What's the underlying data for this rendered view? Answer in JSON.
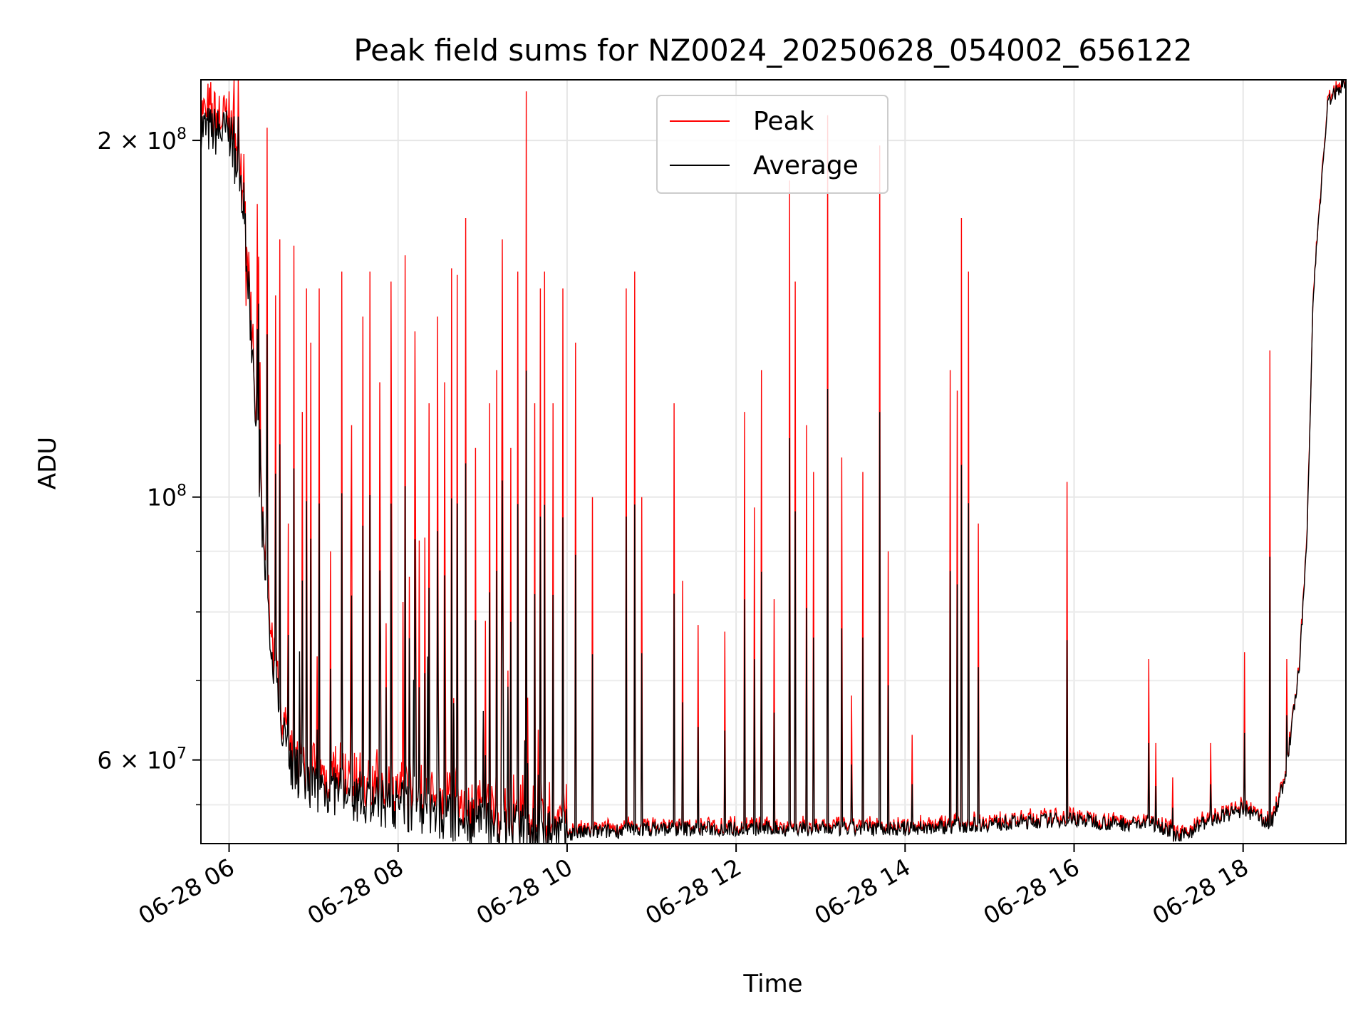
{
  "chart_data": {
    "type": "line",
    "title": "Peak field sums for NZ0024_20250628_054002_656122",
    "xlabel": "Time",
    "ylabel": "ADU",
    "yscale": "log",
    "xlim": [
      "2025-06-28 05:40",
      "2025-06-28 19:13"
    ],
    "ylim": [
      51000000,
      225000000
    ],
    "grid": true,
    "legend": "upper-center",
    "x_ticks": [
      {
        "value": "2025-06-28 06:00",
        "label": "06-28 06"
      },
      {
        "value": "2025-06-28 08:00",
        "label": "06-28 08"
      },
      {
        "value": "2025-06-28 10:00",
        "label": "06-28 10"
      },
      {
        "value": "2025-06-28 12:00",
        "label": "06-28 12"
      },
      {
        "value": "2025-06-28 14:00",
        "label": "06-28 14"
      },
      {
        "value": "2025-06-28 16:00",
        "label": "06-28 16"
      },
      {
        "value": "2025-06-28 18:00",
        "label": "06-28 18"
      }
    ],
    "y_ticks": [
      {
        "value": 200000000,
        "label_base": "2 × 10",
        "label_exp": "8"
      },
      {
        "value": 100000000,
        "label_base": "10",
        "label_exp": "8"
      },
      {
        "value": 60000000,
        "label_base": "6 × 10",
        "label_exp": "7"
      }
    ],
    "series": [
      {
        "name": "Peak",
        "color": "#ff0000",
        "baseline_x": [
          "2025-06-28 05:40",
          "2025-06-28 05:55",
          "2025-06-28 06:00",
          "2025-06-28 06:10",
          "2025-06-28 06:20",
          "2025-06-28 06:30",
          "2025-06-28 06:45",
          "2025-06-28 07:00",
          "2025-06-28 07:30",
          "2025-06-28 08:00",
          "2025-06-28 08:30",
          "2025-06-28 09:00",
          "2025-06-28 09:30",
          "2025-06-28 10:00",
          "2025-06-28 11:00",
          "2025-06-28 12:00",
          "2025-06-28 13:00",
          "2025-06-28 14:00",
          "2025-06-28 15:00",
          "2025-06-28 16:00",
          "2025-06-28 16:30",
          "2025-06-28 17:00",
          "2025-06-28 17:15",
          "2025-06-28 17:30",
          "2025-06-28 18:00",
          "2025-06-28 18:20",
          "2025-06-28 18:30",
          "2025-06-28 18:40",
          "2025-06-28 18:45",
          "2025-06-28 18:50",
          "2025-06-28 19:00",
          "2025-06-28 19:13"
        ],
        "baseline_y": [
          205000000,
          203000000,
          203000000,
          180000000,
          110000000,
          72000000,
          59000000,
          57000000,
          56000000,
          55000000,
          54000000,
          53000000,
          52500000,
          52000000,
          52500000,
          52500000,
          52500000,
          52500000,
          53000000,
          53500000,
          53000000,
          53000000,
          51500000,
          53000000,
          54500000,
          53000000,
          58000000,
          72000000,
          90000000,
          150000000,
          215000000,
          225000000
        ],
        "spikes": [
          {
            "x": "2025-06-28 06:02",
            "y": 206000000
          },
          {
            "x": "2025-06-28 06:12",
            "y": 145000000
          },
          {
            "x": "2025-06-28 06:17",
            "y": 140000000
          },
          {
            "x": "2025-06-28 06:22",
            "y": 130000000
          },
          {
            "x": "2025-06-28 06:27",
            "y": 205000000
          },
          {
            "x": "2025-06-28 06:33",
            "y": 148000000
          },
          {
            "x": "2025-06-28 06:36",
            "y": 165000000
          },
          {
            "x": "2025-06-28 06:42",
            "y": 95000000
          },
          {
            "x": "2025-06-28 06:46",
            "y": 163000000
          },
          {
            "x": "2025-06-28 06:52",
            "y": 118000000
          },
          {
            "x": "2025-06-28 06:55",
            "y": 150000000
          },
          {
            "x": "2025-06-28 06:58",
            "y": 135000000
          },
          {
            "x": "2025-06-28 07:04",
            "y": 150000000
          },
          {
            "x": "2025-06-28 07:12",
            "y": 90000000
          },
          {
            "x": "2025-06-28 07:20",
            "y": 155000000
          },
          {
            "x": "2025-06-28 07:27",
            "y": 115000000
          },
          {
            "x": "2025-06-28 07:35",
            "y": 142000000
          },
          {
            "x": "2025-06-28 07:40",
            "y": 155000000
          },
          {
            "x": "2025-06-28 07:47",
            "y": 125000000
          },
          {
            "x": "2025-06-28 07:55",
            "y": 152000000
          },
          {
            "x": "2025-06-28 08:05",
            "y": 160000000
          },
          {
            "x": "2025-06-28 08:12",
            "y": 138000000
          },
          {
            "x": "2025-06-28 08:22",
            "y": 120000000
          },
          {
            "x": "2025-06-28 08:28",
            "y": 142000000
          },
          {
            "x": "2025-06-28 08:33",
            "y": 125000000
          },
          {
            "x": "2025-06-28 08:38",
            "y": 156000000
          },
          {
            "x": "2025-06-28 08:42",
            "y": 154000000
          },
          {
            "x": "2025-06-28 08:48",
            "y": 172000000
          },
          {
            "x": "2025-06-28 08:55",
            "y": 110000000
          },
          {
            "x": "2025-06-28 09:05",
            "y": 120000000
          },
          {
            "x": "2025-06-28 09:10",
            "y": 128000000
          },
          {
            "x": "2025-06-28 09:14",
            "y": 165000000
          },
          {
            "x": "2025-06-28 09:20",
            "y": 110000000
          },
          {
            "x": "2025-06-28 09:25",
            "y": 155000000
          },
          {
            "x": "2025-06-28 09:31",
            "y": 220000000
          },
          {
            "x": "2025-06-28 09:37",
            "y": 120000000
          },
          {
            "x": "2025-06-28 09:41",
            "y": 150000000
          },
          {
            "x": "2025-06-28 09:44",
            "y": 155000000
          },
          {
            "x": "2025-06-28 09:50",
            "y": 120000000
          },
          {
            "x": "2025-06-28 09:57",
            "y": 150000000
          },
          {
            "x": "2025-06-28 10:06",
            "y": 135000000
          },
          {
            "x": "2025-06-28 10:18",
            "y": 100000000
          },
          {
            "x": "2025-06-28 10:42",
            "y": 150000000
          },
          {
            "x": "2025-06-28 10:48",
            "y": 155000000
          },
          {
            "x": "2025-06-28 10:53",
            "y": 100000000
          },
          {
            "x": "2025-06-28 11:16",
            "y": 120000000
          },
          {
            "x": "2025-06-28 11:22",
            "y": 85000000
          },
          {
            "x": "2025-06-28 11:33",
            "y": 78000000
          },
          {
            "x": "2025-06-28 11:52",
            "y": 77000000
          },
          {
            "x": "2025-06-28 12:06",
            "y": 118000000
          },
          {
            "x": "2025-06-28 12:13",
            "y": 98000000
          },
          {
            "x": "2025-06-28 12:18",
            "y": 128000000
          },
          {
            "x": "2025-06-28 12:27",
            "y": 82000000
          },
          {
            "x": "2025-06-28 12:38",
            "y": 185000000
          },
          {
            "x": "2025-06-28 12:42",
            "y": 152000000
          },
          {
            "x": "2025-06-28 12:50",
            "y": 115000000
          },
          {
            "x": "2025-06-28 12:55",
            "y": 105000000
          },
          {
            "x": "2025-06-28 13:05",
            "y": 210000000
          },
          {
            "x": "2025-06-28 13:15",
            "y": 108000000
          },
          {
            "x": "2025-06-28 13:22",
            "y": 68000000
          },
          {
            "x": "2025-06-28 13:30",
            "y": 105000000
          },
          {
            "x": "2025-06-28 13:42",
            "y": 198000000
          },
          {
            "x": "2025-06-28 13:48",
            "y": 90000000
          },
          {
            "x": "2025-06-28 14:05",
            "y": 63000000
          },
          {
            "x": "2025-06-28 14:32",
            "y": 128000000
          },
          {
            "x": "2025-06-28 14:37",
            "y": 123000000
          },
          {
            "x": "2025-06-28 14:40",
            "y": 172000000
          },
          {
            "x": "2025-06-28 14:45",
            "y": 155000000
          },
          {
            "x": "2025-06-28 14:52",
            "y": 95000000
          },
          {
            "x": "2025-06-28 15:55",
            "y": 103000000
          },
          {
            "x": "2025-06-28 16:53",
            "y": 73000000
          },
          {
            "x": "2025-06-28 16:58",
            "y": 62000000
          },
          {
            "x": "2025-06-28 17:10",
            "y": 58000000
          },
          {
            "x": "2025-06-28 17:37",
            "y": 62000000
          },
          {
            "x": "2025-06-28 18:01",
            "y": 74000000
          },
          {
            "x": "2025-06-28 18:19",
            "y": 133000000
          },
          {
            "x": "2025-06-28 18:31",
            "y": 73000000
          }
        ]
      },
      {
        "name": "Average",
        "color": "#000000"
      }
    ]
  }
}
